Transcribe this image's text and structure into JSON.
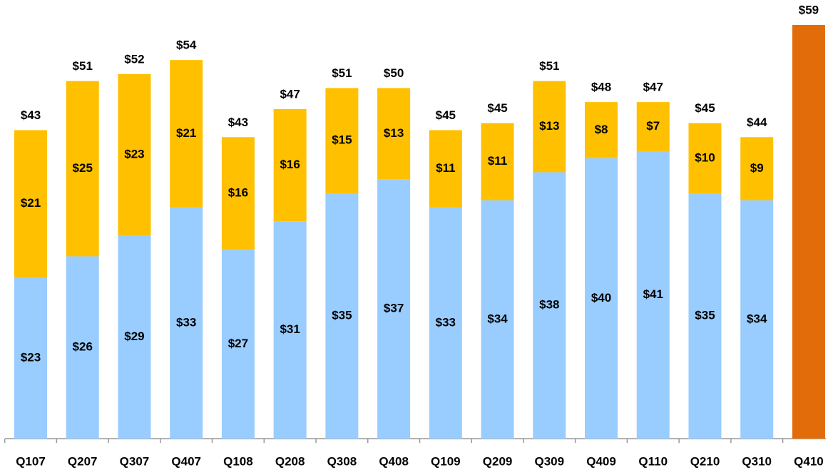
{
  "chart_data": {
    "type": "stacked_bar",
    "categories": [
      "Q107",
      "Q207",
      "Q307",
      "Q407",
      "Q108",
      "Q208",
      "Q308",
      "Q408",
      "Q109",
      "Q209",
      "Q309",
      "Q409",
      "Q110",
      "Q210",
      "Q310",
      "Q410"
    ],
    "series": [
      {
        "color": "#99ccff",
        "values": [
          23,
          26,
          29,
          33,
          27,
          31,
          35,
          37,
          33,
          34,
          38,
          40,
          41,
          35,
          34,
          null
        ],
        "value_labels": [
          "$23",
          "$26",
          "$29",
          "$33",
          "$27",
          "$31",
          "$35",
          "$37",
          "$33",
          "$34",
          "$38",
          "$40",
          "$41",
          "$35",
          "$34",
          null
        ]
      },
      {
        "color": "#ffc000",
        "values": [
          21,
          25,
          23,
          21,
          16,
          16,
          15,
          13,
          11,
          11,
          13,
          8,
          7,
          10,
          9,
          null
        ],
        "value_labels": [
          "$21",
          "$25",
          "$23",
          "$21",
          "$16",
          "$16",
          "$15",
          "$13",
          "$11",
          "$11",
          "$13",
          "$8",
          "$7",
          "$10",
          "$9",
          null
        ]
      },
      {
        "color": "#e36c0a",
        "values": [
          null,
          null,
          null,
          null,
          null,
          null,
          null,
          null,
          null,
          null,
          null,
          null,
          null,
          null,
          null,
          59
        ],
        "value_labels": [
          null,
          null,
          null,
          null,
          null,
          null,
          null,
          null,
          null,
          null,
          null,
          null,
          null,
          null,
          null,
          null
        ]
      }
    ],
    "totals": [
      43,
      51,
      52,
      54,
      43,
      47,
      51,
      50,
      45,
      45,
      51,
      48,
      47,
      45,
      44,
      59
    ],
    "total_labels": [
      "$43",
      "$51",
      "$52",
      "$54",
      "$43",
      "$47",
      "$51",
      "$50",
      "$45",
      "$45",
      "$51",
      "$48",
      "$47",
      "$45",
      "$44",
      "$59"
    ],
    "ylim": [
      0,
      60
    ]
  }
}
